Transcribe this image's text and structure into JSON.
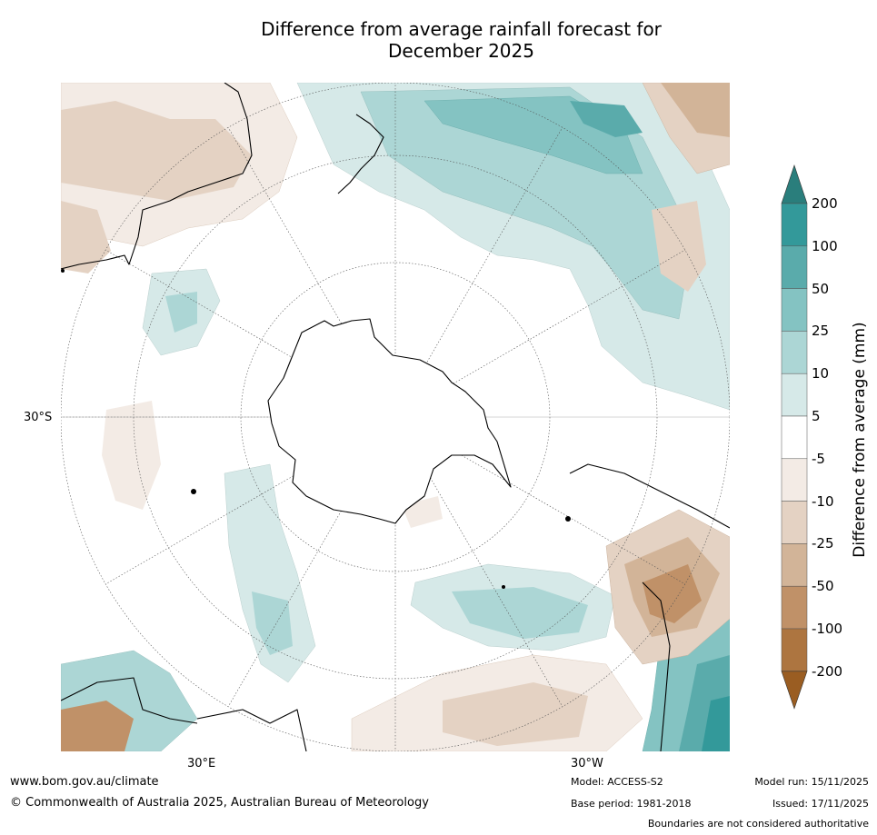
{
  "title": {
    "line1": "Difference from average rainfall forecast for",
    "line2": "December 2025"
  },
  "map": {
    "projection": "South polar stereographic",
    "lat_label": "30°S",
    "lon_labels": {
      "east": "30°E",
      "west": "30°W"
    }
  },
  "colorbar": {
    "title": "Difference from average (mm)",
    "ticks": [
      "200",
      "100",
      "50",
      "25",
      "10",
      "5",
      "-5",
      "-10",
      "-25",
      "-50",
      "-100",
      "-200"
    ],
    "colors": {
      "above_200": "#2a7e7c",
      "100_200": "#33999a",
      "50_100": "#5aabab",
      "25_50": "#84c3c2",
      "10_25": "#acd6d5",
      "5_10": "#d6e9e8",
      "neutral": "#ffffff",
      "m5_m10": "#f3ebe5",
      "m10_m25": "#e4d2c3",
      "m25_m50": "#d2b498",
      "m50_m100": "#c09168",
      "m100_m200": "#ad7540",
      "below_m200": "#9a5d22"
    }
  },
  "footer": {
    "website": "www.bom.gov.au/climate",
    "copyright": "© Commonwealth of Australia 2025, Australian Bureau of Meteorology",
    "model": "Model: ACCESS-S2",
    "base_period": "Base period: 1981-2018",
    "model_run": "Model run: 15/11/2025",
    "issued": "Issued: 17/11/2025",
    "disclaimer": "Boundaries are not considered authoritative"
  }
}
